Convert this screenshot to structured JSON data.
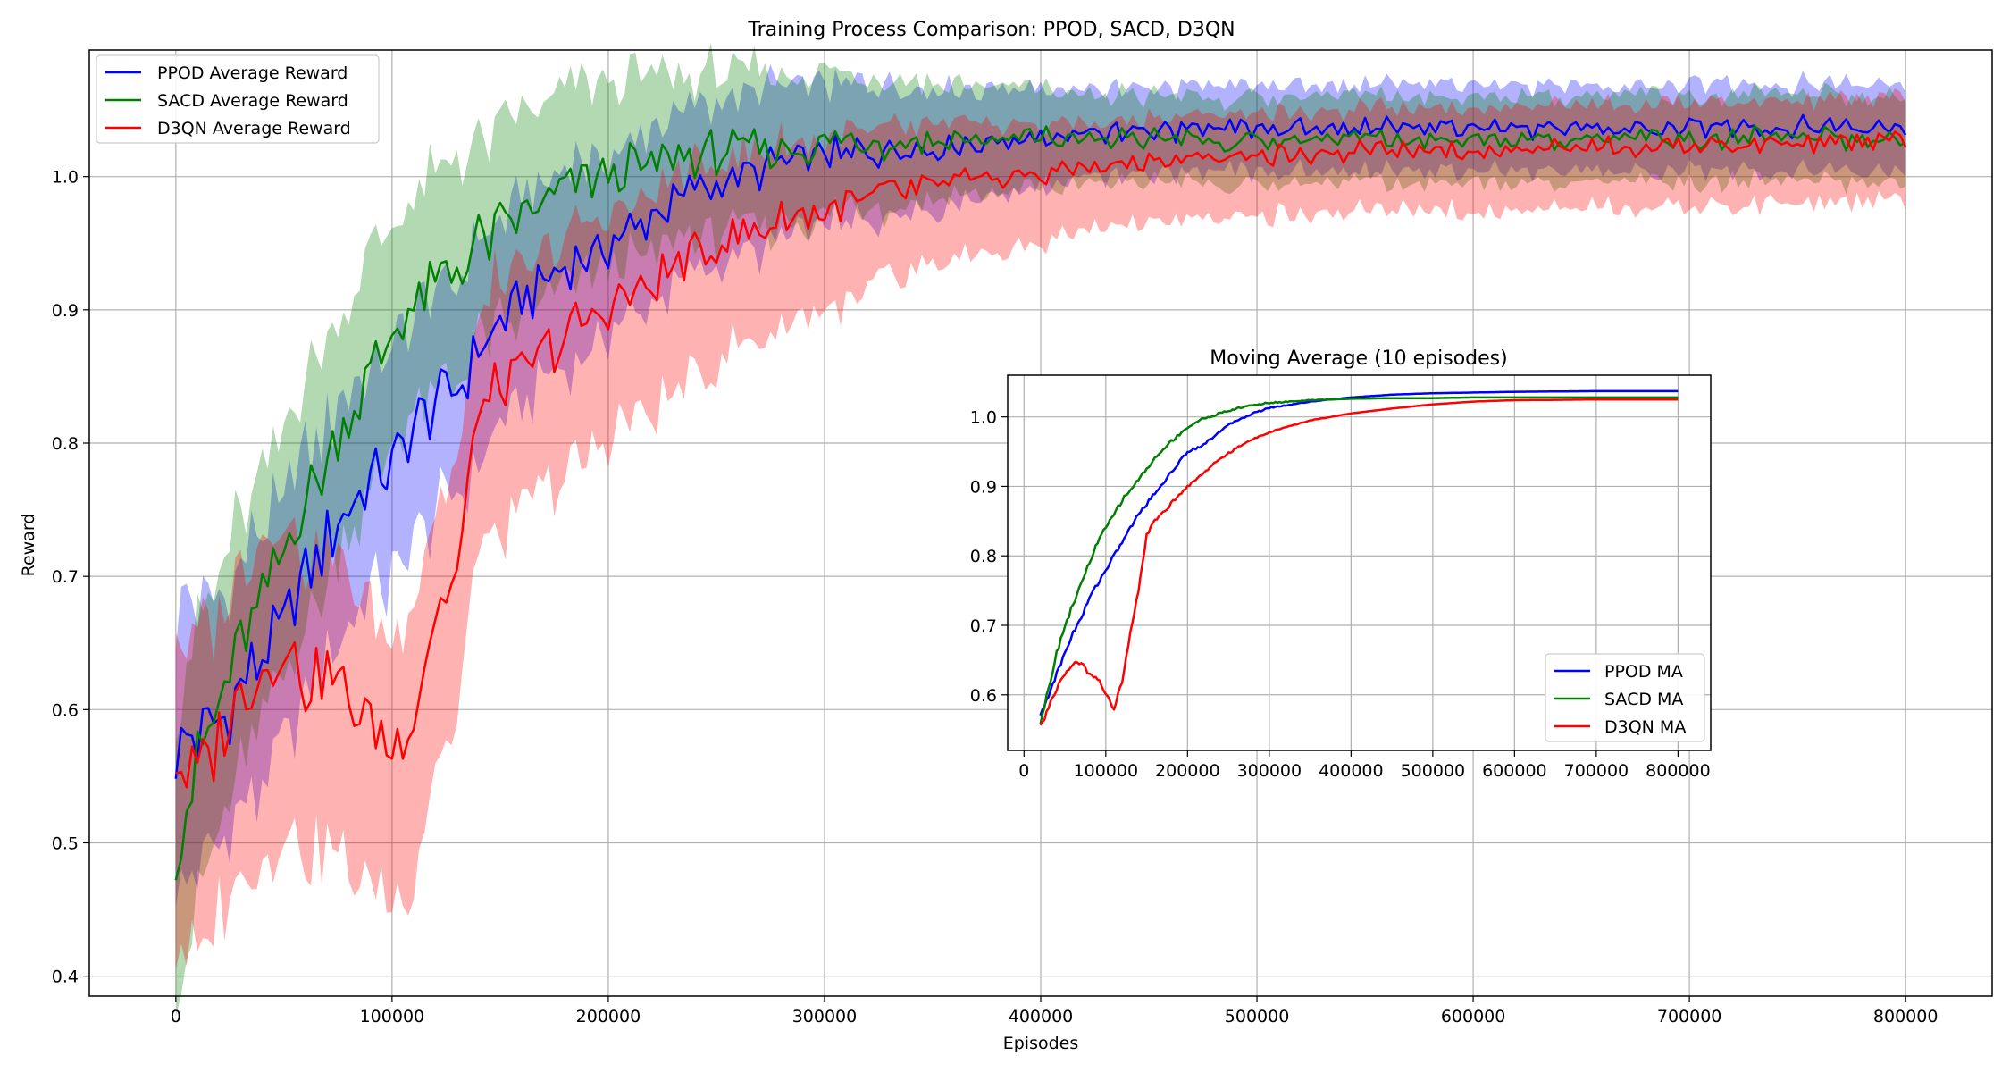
{
  "chart_data": [
    {
      "type": "line",
      "title": "Training Process Comparison: PPOD, SACD, D3QN",
      "xlabel": "Episodes",
      "ylabel": "Reward",
      "xlim": [
        -40000,
        840000
      ],
      "ylim": [
        0.385,
        1.095
      ],
      "xticks": [
        0,
        100000,
        200000,
        300000,
        400000,
        500000,
        600000,
        700000,
        800000
      ],
      "xtick_labels": [
        "0",
        "100000",
        "200000",
        "300000",
        "400000",
        "500000",
        "600000",
        "700000",
        "800000"
      ],
      "yticks": [
        0.4,
        0.5,
        0.6,
        0.7,
        0.8,
        0.9,
        1.0
      ],
      "ytick_labels": [
        "0.4",
        "0.5",
        "0.6",
        "0.7",
        "0.8",
        "0.9",
        "1.0"
      ],
      "grid": true,
      "legend": "top-left",
      "band": "shaded range around each average",
      "series": [
        {
          "name": "PPOD Average Reward",
          "color": "#0000ff",
          "x": [
            0,
            10000,
            20000,
            30000,
            40000,
            50000,
            60000,
            70000,
            80000,
            90000,
            100000,
            110000,
            120000,
            130000,
            140000,
            150000,
            160000,
            170000,
            180000,
            190000,
            200000,
            220000,
            240000,
            260000,
            280000,
            300000,
            320000,
            340000,
            360000,
            380000,
            400000,
            450000,
            500000,
            550000,
            600000,
            650000,
            700000,
            750000,
            800000
          ],
          "values": [
            0.57,
            0.58,
            0.59,
            0.62,
            0.64,
            0.66,
            0.7,
            0.73,
            0.75,
            0.77,
            0.78,
            0.81,
            0.83,
            0.84,
            0.87,
            0.89,
            0.91,
            0.92,
            0.93,
            0.94,
            0.95,
            0.97,
            0.99,
            1.0,
            1.01,
            1.015,
            1.02,
            1.022,
            1.025,
            1.028,
            1.03,
            1.033,
            1.035,
            1.036,
            1.037,
            1.037,
            1.037,
            1.037,
            1.037
          ]
        },
        {
          "name": "SACD Average Reward",
          "color": "#008000",
          "x": [
            0,
            10000,
            20000,
            30000,
            40000,
            50000,
            60000,
            70000,
            80000,
            90000,
            100000,
            110000,
            120000,
            130000,
            140000,
            150000,
            160000,
            170000,
            180000,
            190000,
            200000,
            220000,
            240000,
            260000,
            280000,
            300000,
            320000,
            340000,
            360000,
            380000,
            400000,
            450000,
            500000,
            550000,
            600000,
            650000,
            700000,
            750000,
            800000
          ],
          "values": [
            0.5,
            0.56,
            0.6,
            0.65,
            0.68,
            0.72,
            0.76,
            0.79,
            0.82,
            0.85,
            0.88,
            0.9,
            0.92,
            0.93,
            0.95,
            0.96,
            0.97,
            0.98,
            0.99,
            1.0,
            1.0,
            1.01,
            1.015,
            1.02,
            1.022,
            1.024,
            1.025,
            1.026,
            1.027,
            1.027,
            1.028,
            1.028,
            1.028,
            1.028,
            1.028,
            1.028,
            1.028,
            1.028,
            1.028
          ]
        },
        {
          "name": "D3QN Average Reward",
          "color": "#ff0000",
          "x": [
            0,
            10000,
            20000,
            30000,
            40000,
            50000,
            60000,
            70000,
            80000,
            90000,
            100000,
            110000,
            120000,
            130000,
            140000,
            150000,
            160000,
            170000,
            180000,
            190000,
            200000,
            220000,
            240000,
            260000,
            280000,
            300000,
            320000,
            340000,
            360000,
            380000,
            400000,
            450000,
            500000,
            550000,
            600000,
            650000,
            700000,
            750000,
            800000
          ],
          "values": [
            0.56,
            0.55,
            0.58,
            0.61,
            0.63,
            0.65,
            0.62,
            0.63,
            0.61,
            0.59,
            0.57,
            0.6,
            0.67,
            0.7,
            0.83,
            0.84,
            0.85,
            0.87,
            0.88,
            0.89,
            0.9,
            0.92,
            0.94,
            0.955,
            0.965,
            0.975,
            0.985,
            0.99,
            0.995,
            1.0,
            1.003,
            1.01,
            1.015,
            1.018,
            1.02,
            1.022,
            1.023,
            1.024,
            1.025
          ]
        }
      ]
    },
    {
      "type": "line",
      "title": "Moving Average (10 episodes)",
      "xlim": [
        -20000,
        840000
      ],
      "ylim": [
        0.52,
        1.06
      ],
      "xticks": [
        0,
        100000,
        200000,
        300000,
        400000,
        500000,
        600000,
        700000,
        800000
      ],
      "xtick_labels": [
        "0",
        "100000",
        "200000",
        "300000",
        "400000",
        "500000",
        "600000",
        "700000",
        "800000"
      ],
      "yticks": [
        0.6,
        0.7,
        0.8,
        0.9,
        1.0
      ],
      "ytick_labels": [
        "0.6",
        "0.7",
        "0.8",
        "0.9",
        "1.0"
      ],
      "grid": true,
      "legend": "bottom-right",
      "series": [
        {
          "name": "PPOD MA",
          "color": "#0000ff",
          "x": [
            20000,
            30000,
            40000,
            50000,
            60000,
            70000,
            80000,
            90000,
            100000,
            120000,
            140000,
            160000,
            180000,
            200000,
            220000,
            240000,
            260000,
            280000,
            300000,
            350000,
            400000,
            450000,
            500000,
            550000,
            600000,
            700000,
            800000
          ],
          "values": [
            0.57,
            0.6,
            0.63,
            0.66,
            0.69,
            0.71,
            0.74,
            0.76,
            0.78,
            0.82,
            0.86,
            0.89,
            0.92,
            0.95,
            0.96,
            0.98,
            0.995,
            1.005,
            1.013,
            1.022,
            1.028,
            1.032,
            1.034,
            1.035,
            1.036,
            1.037,
            1.037
          ]
        },
        {
          "name": "SACD MA",
          "color": "#008000",
          "x": [
            20000,
            30000,
            40000,
            50000,
            60000,
            70000,
            80000,
            90000,
            100000,
            120000,
            140000,
            160000,
            180000,
            200000,
            220000,
            240000,
            260000,
            280000,
            300000,
            350000,
            400000,
            450000,
            500000,
            550000,
            600000,
            700000,
            800000
          ],
          "values": [
            0.56,
            0.61,
            0.66,
            0.7,
            0.73,
            0.76,
            0.79,
            0.82,
            0.84,
            0.88,
            0.91,
            0.94,
            0.965,
            0.985,
            0.998,
            1.005,
            1.012,
            1.017,
            1.02,
            1.024,
            1.026,
            1.027,
            1.027,
            1.028,
            1.028,
            1.028,
            1.028
          ]
        },
        {
          "name": "D3QN MA",
          "color": "#ff0000",
          "x": [
            20000,
            30000,
            40000,
            50000,
            60000,
            70000,
            80000,
            90000,
            100000,
            110000,
            120000,
            130000,
            140000,
            150000,
            160000,
            180000,
            200000,
            220000,
            240000,
            260000,
            280000,
            300000,
            350000,
            400000,
            450000,
            500000,
            550000,
            600000,
            700000,
            800000
          ],
          "values": [
            0.555,
            0.58,
            0.61,
            0.63,
            0.645,
            0.645,
            0.63,
            0.625,
            0.6,
            0.58,
            0.62,
            0.69,
            0.75,
            0.83,
            0.85,
            0.875,
            0.9,
            0.92,
            0.94,
            0.955,
            0.968,
            0.978,
            0.995,
            1.005,
            1.012,
            1.018,
            1.022,
            1.024,
            1.025,
            1.025
          ]
        }
      ]
    }
  ]
}
